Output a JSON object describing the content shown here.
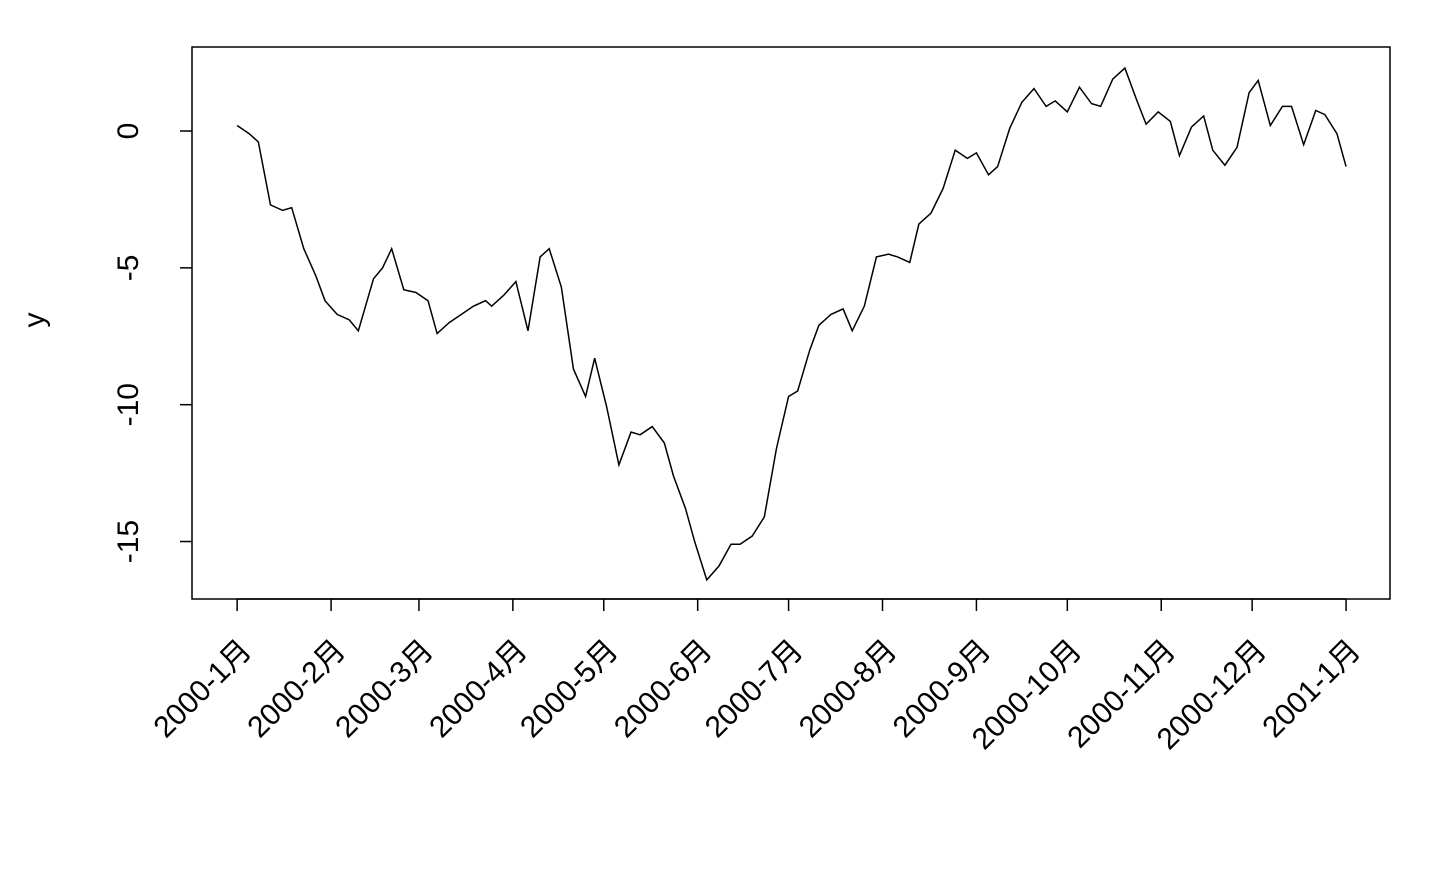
{
  "chart_data": {
    "type": "line",
    "ylabel": "y",
    "x": [
      0,
      4,
      7,
      11,
      15,
      18,
      22,
      26,
      29,
      33,
      37,
      40,
      45,
      48,
      51,
      55,
      59,
      63,
      66,
      70,
      74,
      78,
      82,
      84,
      88,
      92,
      96,
      100,
      103,
      107,
      111,
      115,
      118,
      122,
      126,
      130,
      133,
      137,
      141,
      144,
      148,
      151,
      155,
      159,
      163,
      166,
      170,
      174,
      178,
      182,
      185,
      189,
      192,
      196,
      200,
      203,
      207,
      211,
      215,
      218,
      222,
      225,
      229,
      233,
      237,
      241,
      244,
      248,
      251,
      255,
      259,
      263,
      267,
      270,
      274,
      278,
      282,
      285,
      289,
      293,
      297,
      300,
      304,
      308,
      311,
      315,
      319,
      322,
      326,
      330,
      334,
      337,
      341,
      345,
      348,
      352,
      356,
      359,
      363,
      366
    ],
    "series": [
      {
        "color": "#000000",
        "values": [
          0.2,
          -0.1,
          -0.4,
          -2.7,
          -2.9,
          -2.8,
          -4.3,
          -5.3,
          -6.2,
          -6.7,
          -6.9,
          -7.3,
          -5.4,
          -5.0,
          -4.3,
          -5.8,
          -5.9,
          -6.2,
          -7.4,
          -7.0,
          -6.7,
          -6.4,
          -6.2,
          -6.4,
          -6.0,
          -5.5,
          -7.3,
          -4.6,
          -4.3,
          -5.7,
          -8.7,
          -9.7,
          -8.3,
          -10.1,
          -12.2,
          -11.0,
          -11.1,
          -10.8,
          -11.4,
          -12.6,
          -13.8,
          -15.0,
          -16.4,
          -15.9,
          -15.1,
          -15.1,
          -14.8,
          -14.1,
          -11.6,
          -9.7,
          -9.5,
          -8.0,
          -7.1,
          -6.7,
          -6.5,
          -7.3,
          -6.4,
          -4.6,
          -4.5,
          -4.6,
          -4.8,
          -3.4,
          -3.0,
          -2.1,
          -0.7,
          -1.0,
          -0.8,
          -1.6,
          -1.3,
          0.1,
          1.05,
          1.55,
          0.9,
          1.1,
          0.7,
          1.6,
          1.0,
          0.9,
          1.9,
          2.3,
          1.1,
          0.25,
          0.7,
          0.35,
          -0.9,
          0.15,
          0.55,
          -0.7,
          -1.25,
          -0.6,
          1.4,
          1.85,
          0.2,
          0.9,
          0.9,
          -0.5,
          0.75,
          0.6,
          -0.1,
          -1.3
        ]
      }
    ],
    "xlim": [
      -14.9,
      380.5
    ],
    "xticks": [
      {
        "value": 0,
        "label": "2000-1月"
      },
      {
        "value": 31,
        "label": "2000-2月"
      },
      {
        "value": 60,
        "label": "2000-3月"
      },
      {
        "value": 91,
        "label": "2000-4月"
      },
      {
        "value": 121,
        "label": "2000-5月"
      },
      {
        "value": 152,
        "label": "2000-6月"
      },
      {
        "value": 182,
        "label": "2000-7月"
      },
      {
        "value": 213,
        "label": "2000-8月"
      },
      {
        "value": 244,
        "label": "2000-9月"
      },
      {
        "value": 274,
        "label": "2000-10月"
      },
      {
        "value": 305,
        "label": "2000-11月"
      },
      {
        "value": 335,
        "label": "2000-12月"
      },
      {
        "value": 366,
        "label": "2001-1月"
      }
    ],
    "ylim": [
      -17.1,
      3.07
    ],
    "yticks": [
      -15,
      -10,
      -5,
      0
    ]
  }
}
